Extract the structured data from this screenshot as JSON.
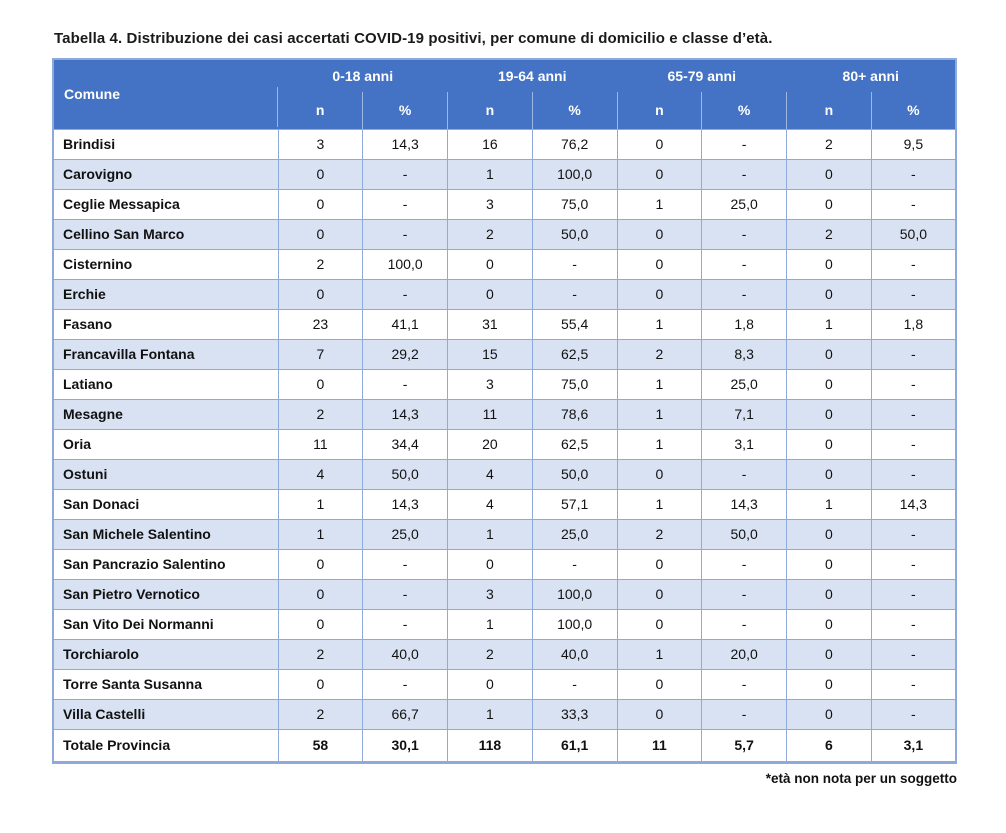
{
  "title": "Tabella 4. Distribuzione dei casi accertati COVID-19 positivi, per comune di domicilio e classe d’età.",
  "footnote": "*età non nota per un soggetto",
  "colors": {
    "header_bg": "#4472C4",
    "header_text": "#FFFFFF",
    "band_bg": "#D9E2F3",
    "border": "#8EAADB"
  },
  "table": {
    "comune_header": "Comune",
    "age_groups": [
      "0-18 anni",
      "19-64 anni",
      "65-79 anni",
      "80+ anni"
    ],
    "sub_headers": [
      "n",
      "%"
    ],
    "rows": [
      {
        "comune": "Brindisi",
        "values": [
          "3",
          "14,3",
          "16",
          "76,2",
          "0",
          "-",
          "2",
          "9,5"
        ]
      },
      {
        "comune": "Carovigno",
        "values": [
          "0",
          "-",
          "1",
          "100,0",
          "0",
          "-",
          "0",
          "-"
        ]
      },
      {
        "comune": "Ceglie Messapica",
        "values": [
          "0",
          "-",
          "3",
          "75,0",
          "1",
          "25,0",
          "0",
          "-"
        ]
      },
      {
        "comune": "Cellino San Marco",
        "values": [
          "0",
          "-",
          "2",
          "50,0",
          "0",
          "-",
          "2",
          "50,0"
        ]
      },
      {
        "comune": "Cisternino",
        "values": [
          "2",
          "100,0",
          "0",
          "-",
          "0",
          "-",
          "0",
          "-"
        ]
      },
      {
        "comune": "Erchie",
        "values": [
          "0",
          "-",
          "0",
          "-",
          "0",
          "-",
          "0",
          "-"
        ]
      },
      {
        "comune": "Fasano",
        "values": [
          "23",
          "41,1",
          "31",
          "55,4",
          "1",
          "1,8",
          "1",
          "1,8"
        ]
      },
      {
        "comune": "Francavilla Fontana",
        "values": [
          "7",
          "29,2",
          "15",
          "62,5",
          "2",
          "8,3",
          "0",
          "-"
        ]
      },
      {
        "comune": "Latiano",
        "values": [
          "0",
          "-",
          "3",
          "75,0",
          "1",
          "25,0",
          "0",
          "-"
        ]
      },
      {
        "comune": "Mesagne",
        "values": [
          "2",
          "14,3",
          "11",
          "78,6",
          "1",
          "7,1",
          "0",
          "-"
        ]
      },
      {
        "comune": "Oria",
        "values": [
          "11",
          "34,4",
          "20",
          "62,5",
          "1",
          "3,1",
          "0",
          "-"
        ]
      },
      {
        "comune": "Ostuni",
        "values": [
          "4",
          "50,0",
          "4",
          "50,0",
          "0",
          "-",
          "0",
          "-"
        ]
      },
      {
        "comune": "San Donaci",
        "values": [
          "1",
          "14,3",
          "4",
          "57,1",
          "1",
          "14,3",
          "1",
          "14,3"
        ]
      },
      {
        "comune": "San Michele Salentino",
        "values": [
          "1",
          "25,0",
          "1",
          "25,0",
          "2",
          "50,0",
          "0",
          "-"
        ]
      },
      {
        "comune": "San Pancrazio Salentino",
        "values": [
          "0",
          "-",
          "0",
          "-",
          "0",
          "-",
          "0",
          "-"
        ]
      },
      {
        "comune": "San Pietro Vernotico",
        "values": [
          "0",
          "-",
          "3",
          "100,0",
          "0",
          "-",
          "0",
          "-"
        ]
      },
      {
        "comune": "San Vito Dei Normanni",
        "values": [
          "0",
          "-",
          "1",
          "100,0",
          "0",
          "-",
          "0",
          "-"
        ]
      },
      {
        "comune": "Torchiarolo",
        "values": [
          "2",
          "40,0",
          "2",
          "40,0",
          "1",
          "20,0",
          "0",
          "-"
        ]
      },
      {
        "comune": "Torre Santa Susanna",
        "values": [
          "0",
          "-",
          "0",
          "-",
          "0",
          "-",
          "0",
          "-"
        ]
      },
      {
        "comune": "Villa Castelli",
        "values": [
          "2",
          "66,7",
          "1",
          "33,3",
          "0",
          "-",
          "0",
          "-"
        ]
      }
    ],
    "total": {
      "comune": "Totale Provincia",
      "values": [
        "58",
        "30,1",
        "118",
        "61,1",
        "11",
        "5,7",
        "6",
        "3,1"
      ]
    }
  }
}
